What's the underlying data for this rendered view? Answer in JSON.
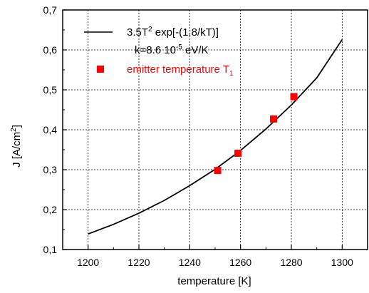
{
  "chart_data": {
    "type": "line",
    "xlabel": "temperature [K]",
    "ylabel": {
      "prefix": "J [A/cm",
      "sup": "2",
      "suffix": "]"
    },
    "xlim": [
      1190,
      1310
    ],
    "ylim": [
      0.1,
      0.7
    ],
    "x_ticks": [
      1200,
      1220,
      1240,
      1260,
      1280,
      1300
    ],
    "y_ticks": [
      "0,1",
      "0,2",
      "0,3",
      "0,4",
      "0,5",
      "0,6",
      "0,7"
    ],
    "y_tick_values": [
      0.1,
      0.2,
      0.3,
      0.4,
      0.5,
      0.6,
      0.7
    ],
    "grid": true,
    "legend_position": "top-left",
    "series": [
      {
        "type": "line",
        "color": "#000000",
        "x": [
          1200,
          1210,
          1220,
          1230,
          1240,
          1250,
          1260,
          1270,
          1280,
          1290,
          1300
        ],
        "y": [
          0.139,
          0.163,
          0.191,
          0.223,
          0.26,
          0.301,
          0.348,
          0.402,
          0.462,
          0.53,
          0.626
        ],
        "legend": {
          "line1_prefix": "3.5T",
          "line1_sup": "2",
          "line1_suffix": " exp[-(1.8/kT)]",
          "line2_prefix": "k=8.6 10",
          "line2_sup": "-5",
          "line2_suffix": " eV/K"
        }
      },
      {
        "type": "scatter",
        "marker": "square",
        "color": "#ff0000",
        "x": [
          1251,
          1259,
          1273,
          1281
        ],
        "y": [
          0.298,
          0.341,
          0.427,
          0.483
        ],
        "legend": {
          "prefix": "emitter temperature T",
          "sub": "1"
        }
      }
    ]
  }
}
